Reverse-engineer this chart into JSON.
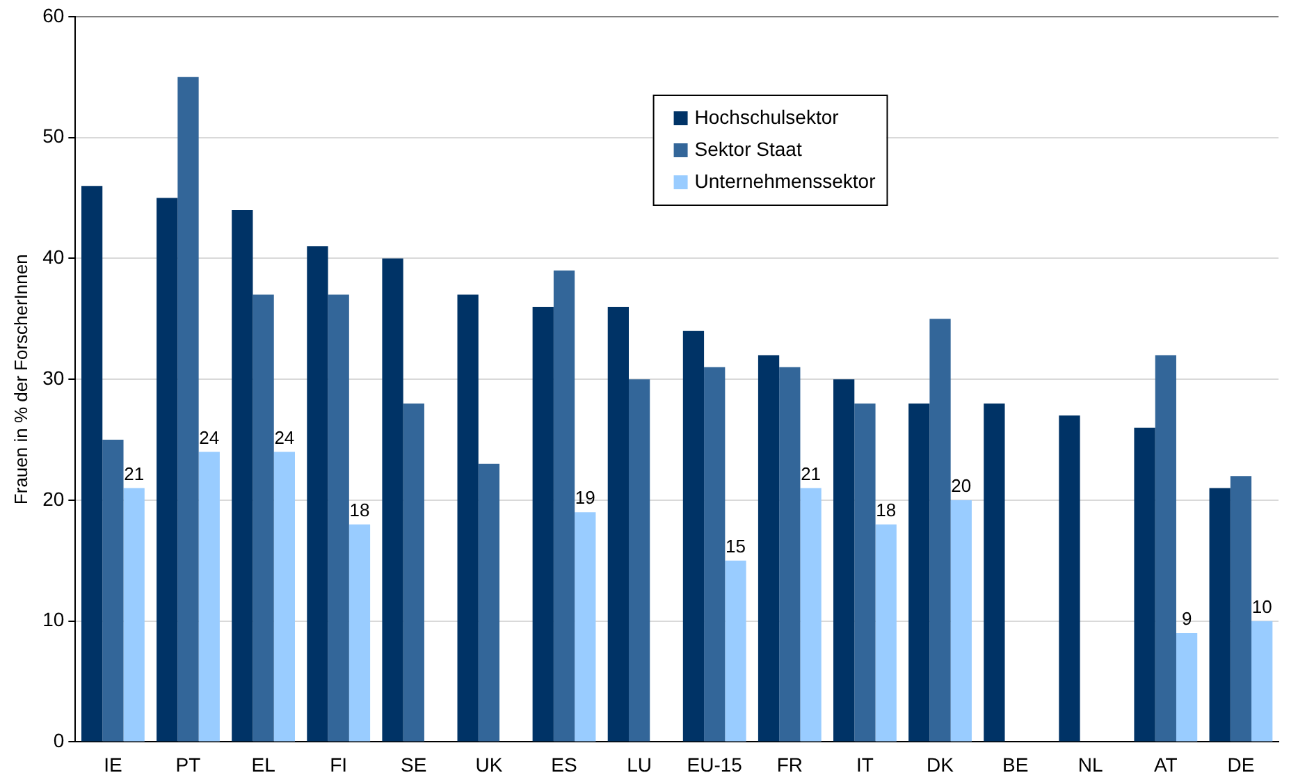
{
  "chart_data": {
    "type": "bar",
    "ylabel": "Frauen in % der ForscherInnen",
    "categories": [
      "IE",
      "PT",
      "EL",
      "FI",
      "SE",
      "UK",
      "ES",
      "LU",
      "EU-15",
      "FR",
      "IT",
      "DK",
      "BE",
      "NL",
      "AT",
      "DE"
    ],
    "series": [
      {
        "name": "Hochschulsektor",
        "color": "#003366",
        "values": [
          46,
          45,
          44,
          41,
          40,
          37,
          36,
          36,
          34,
          32,
          30,
          28,
          28,
          27,
          26,
          21
        ]
      },
      {
        "name": "Sektor Staat",
        "color": "#336699",
        "values": [
          25,
          55,
          37,
          37,
          28,
          23,
          39,
          30,
          31,
          31,
          28,
          35,
          null,
          null,
          32,
          22
        ]
      },
      {
        "name": "Unternehmenssektor",
        "color": "#99ccff",
        "values": [
          21,
          24,
          24,
          18,
          null,
          null,
          19,
          null,
          15,
          21,
          18,
          20,
          null,
          null,
          9,
          10
        ],
        "value_labels": [
          "21",
          "24",
          "24",
          "18",
          null,
          null,
          "19",
          null,
          "15",
          "21",
          "18",
          "20",
          null,
          null,
          "9",
          "10"
        ]
      }
    ],
    "ylim": [
      0,
      60
    ],
    "yticks": [
      0,
      10,
      20,
      30,
      40,
      50,
      60
    ],
    "grid": "y",
    "legend": "top"
  }
}
